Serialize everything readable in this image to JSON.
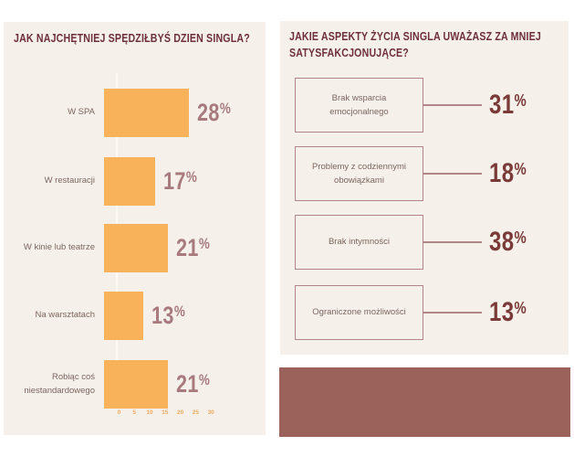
{
  "colors": {
    "page_bg": "#ffffff",
    "panel_bg": "#f5f1ea",
    "bar_orange": "#f8b35a",
    "left_value": "#a87a7e",
    "right_value": "#7a3a37",
    "heading": "#6e2f3c",
    "outline_rose": "#b28588",
    "body_text": "#7c655f",
    "axis_tick": "#edaa5e",
    "footer_block": "#9a625b"
  },
  "chart_data": [
    {
      "type": "bar",
      "orientation": "horizontal",
      "title": "JAK NAJCHĘTNIEJ SPĘDZIŁBYŚ DZIEN SINGLA?",
      "categories": [
        "W SPA",
        "W restauracji",
        "W kinie lub teatrze",
        "Na warsztatach",
        "Robiąc coś niestandardowego"
      ],
      "values": [
        28,
        17,
        21,
        13,
        21
      ],
      "unit": "%",
      "xlim": [
        0,
        30
      ],
      "x_ticks": [
        "0",
        "5",
        "10",
        "15",
        "20",
        "25",
        "30"
      ],
      "grid": false,
      "bar_color": "#f8b35a",
      "value_label_color": "#a87a7e"
    },
    {
      "type": "table",
      "title": "JAKIE ASPEKTY ŻYCIA SINGLA UWAŻASZ ZA MNIEJ SATYSFAKCJONUJĄCE?",
      "categories": [
        "Brak wsparcia emocjonalnego",
        "Problemy z codziennymi obowiązkami",
        "Brak intymności",
        "Ograniczone możliwości"
      ],
      "values": [
        31,
        18,
        38,
        13
      ],
      "unit": "%",
      "value_label_color": "#7a3a37"
    }
  ]
}
